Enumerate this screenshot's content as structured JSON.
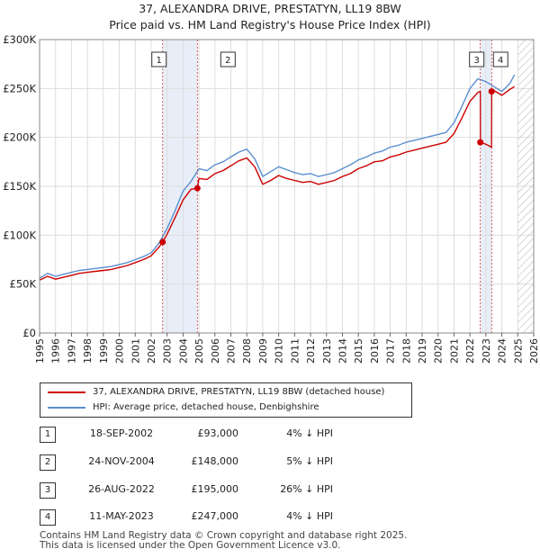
{
  "title_line1": "37, ALEXANDRA DRIVE, PRESTATYN, LL19 8BW",
  "title_line2": "Price paid vs. HM Land Registry's House Price Index (HPI)",
  "legend": {
    "property": "37, ALEXANDRA DRIVE, PRESTATYN, LL19 8BW (detached house)",
    "hpi": "HPI: Average price, detached house, Denbighshire"
  },
  "colors": {
    "property": "#cc0000",
    "hpi": "#5b8fd0",
    "shade": "#e8eef8",
    "grid": "#dddddd"
  },
  "transactions": [
    {
      "num": "1",
      "date": "18-SEP-2002",
      "price": "£93,000",
      "hpi": "4% ↓ HPI"
    },
    {
      "num": "2",
      "date": "24-NOV-2004",
      "price": "£148,000",
      "hpi": "5% ↓ HPI"
    },
    {
      "num": "3",
      "date": "26-AUG-2022",
      "price": "£195,000",
      "hpi": "26% ↓ HPI"
    },
    {
      "num": "4",
      "date": "11-MAY-2023",
      "price": "£247,000",
      "hpi": "4% ↓ HPI"
    }
  ],
  "footer": {
    "line1": "Contains HM Land Registry data © Crown copyright and database right 2025.",
    "line2": "This data is licensed under the Open Government Licence v3.0."
  },
  "chart_data": {
    "type": "line",
    "title": "Price paid vs. HM Land Registry's House Price Index (HPI)",
    "xlim": [
      1995,
      2026
    ],
    "ylim": [
      0,
      300000
    ],
    "x_ticks": [
      1995,
      1996,
      1997,
      1998,
      1999,
      2000,
      2001,
      2002,
      2003,
      2004,
      2005,
      2006,
      2007,
      2008,
      2009,
      2010,
      2011,
      2012,
      2013,
      2014,
      2015,
      2016,
      2017,
      2018,
      2019,
      2020,
      2021,
      2022,
      2023,
      2024,
      2025,
      2026
    ],
    "y_ticks": [
      0,
      50000,
      100000,
      150000,
      200000,
      250000,
      300000
    ],
    "y_tick_labels": [
      "£0",
      "£50K",
      "£100K",
      "£150K",
      "£200K",
      "£250K",
      "£300K"
    ],
    "future_after": 2025.0,
    "shaded_ranges": [
      [
        2002.72,
        2004.9
      ],
      [
        2022.65,
        2023.36
      ]
    ],
    "series": [
      {
        "name": "HPI: Average price, detached house, Denbighshire",
        "color": "#5b8fd0",
        "x": [
          1995,
          1995.5,
          1996,
          1996.5,
          1997,
          1997.5,
          1998,
          1998.5,
          1999,
          1999.5,
          2000,
          2000.5,
          2001,
          2001.5,
          2002,
          2002.5,
          2003,
          2003.5,
          2004,
          2004.5,
          2005,
          2005.5,
          2006,
          2006.5,
          2007,
          2007.5,
          2008,
          2008.5,
          2009,
          2009.5,
          2010,
          2010.5,
          2011,
          2011.5,
          2012,
          2012.5,
          2013,
          2013.5,
          2014,
          2014.5,
          2015,
          2015.5,
          2016,
          2016.5,
          2017,
          2017.5,
          2018,
          2018.5,
          2019,
          2019.5,
          2020,
          2020.5,
          2021,
          2021.5,
          2022,
          2022.5,
          2023,
          2023.5,
          2024,
          2024.5,
          2024.8
        ],
        "values": [
          56000,
          61000,
          58000,
          60000,
          62000,
          64000,
          65000,
          66000,
          67000,
          68000,
          70000,
          72000,
          75000,
          78000,
          82000,
          92000,
          107000,
          125000,
          145000,
          155000,
          168000,
          166000,
          172000,
          175000,
          180000,
          185000,
          188000,
          178000,
          160000,
          165000,
          170000,
          167000,
          164000,
          162000,
          163000,
          160000,
          162000,
          164000,
          168000,
          172000,
          177000,
          180000,
          184000,
          186000,
          190000,
          192000,
          195000,
          197000,
          199000,
          201000,
          203000,
          205000,
          215000,
          232000,
          250000,
          260000,
          257000,
          252000,
          247000,
          255000,
          264000
        ]
      },
      {
        "name": "37, ALEXANDRA DRIVE, PRESTATYN, LL19 8BW (detached house)",
        "color": "#cc0000",
        "x": [
          1995,
          1995.5,
          1996,
          1996.5,
          1997,
          1997.5,
          1998,
          1998.5,
          1999,
          1999.5,
          2000,
          2000.5,
          2001,
          2001.5,
          2002,
          2002.5,
          2002.72,
          2003,
          2003.5,
          2004,
          2004.5,
          2004.9,
          2005,
          2005.5,
          2006,
          2006.5,
          2007,
          2007.5,
          2008,
          2008.5,
          2009,
          2009.5,
          2010,
          2010.5,
          2011,
          2011.5,
          2012,
          2012.5,
          2013,
          2013.5,
          2014,
          2014.5,
          2015,
          2015.5,
          2016,
          2016.5,
          2017,
          2017.5,
          2018,
          2018.5,
          2019,
          2019.5,
          2020,
          2020.5,
          2021,
          2021.5,
          2022,
          2022.5,
          2022.65,
          2022.66,
          2023,
          2023.36,
          2023.37,
          2023.5,
          2024,
          2024.5,
          2024.8
        ],
        "values": [
          54000,
          58000,
          55000,
          57000,
          59000,
          61000,
          62000,
          63000,
          64000,
          65000,
          67000,
          69000,
          72000,
          75000,
          79000,
          88000,
          93000,
          101000,
          118000,
          136000,
          147000,
          148000,
          158000,
          157000,
          163000,
          166000,
          171000,
          176000,
          179000,
          170000,
          152000,
          156000,
          161000,
          158000,
          156000,
          154000,
          155000,
          152000,
          154000,
          156000,
          160000,
          163000,
          168000,
          171000,
          175000,
          176000,
          180000,
          182000,
          185000,
          187000,
          189000,
          191000,
          193000,
          195000,
          204000,
          220000,
          237000,
          246000,
          247000,
          195000,
          193000,
          190000,
          247000,
          248000,
          243000,
          249000,
          252000
        ]
      }
    ],
    "markers": [
      {
        "label": "1",
        "x": 2002.72,
        "y": 93000
      },
      {
        "label": "2",
        "x": 2004.9,
        "y": 148000
      },
      {
        "label": "3",
        "x": 2022.65,
        "y": 195000
      },
      {
        "label": "4",
        "x": 2023.36,
        "y": 247000
      }
    ]
  }
}
